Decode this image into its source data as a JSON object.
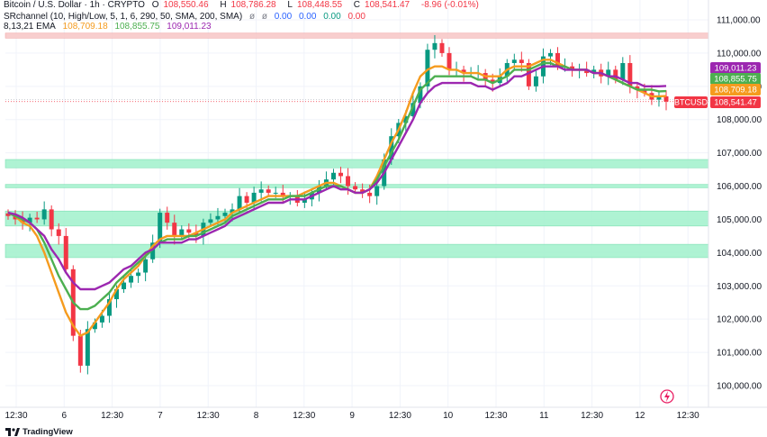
{
  "header": {
    "symbol_title": "Bitcoin / U.S. Dollar · 1h · CRYPTO",
    "ohlc": [
      {
        "label": "O",
        "value": "108,550.46"
      },
      {
        "label": "H",
        "value": "108,786.28"
      },
      {
        "label": "L",
        "value": "108,448.55"
      },
      {
        "label": "C",
        "value": "108,541.47"
      }
    ],
    "change": "-8.96 (-0.01%)",
    "indicator1": {
      "title": "SRchannel (10, High/Low, 5, 1, 6, 290, 50, SMA, 200, SMA)",
      "icons": [
        "eye-off-icon",
        "eye-off-icon"
      ],
      "values": [
        "0.00",
        "0.00",
        "0.00",
        "0.00"
      ]
    },
    "indicator2": {
      "title": "8,13,21 EMA",
      "values": [
        "108,709.18",
        "108,855.75",
        "109,011.23"
      ]
    }
  },
  "colors": {
    "up": "#089981",
    "down": "#f23645",
    "ema8": "#f59b1e",
    "ema13": "#4caf50",
    "ema21": "#9c27b0",
    "support_zone": "#a6f2cf",
    "resistance_zone": "#f8c9c9",
    "price_tag": "#f23645",
    "grid": "#f0f3fa",
    "axis_text": "#131722"
  },
  "footer": {
    "brand": "TradingView",
    "logo_icon": "tradingview-logo-icon",
    "bolt_icon": "lightning-icon"
  },
  "chart_data": {
    "type": "candlestick",
    "title": "Bitcoin / U.S. Dollar · 1h · CRYPTO",
    "y_axis_ticks": [
      "111,000.00",
      "110,000.00",
      "109,000.00",
      "108,000.00",
      "107,000.00",
      "106,000.00",
      "105,000.00",
      "104,000.00",
      "103,000.00",
      "102,000.00",
      "101,000.00",
      "100,000.00"
    ],
    "y_tick_values": [
      111000,
      110000,
      109000,
      108000,
      107000,
      106000,
      105000,
      104000,
      103000,
      102000,
      101000,
      100000
    ],
    "ylim": [
      99500,
      111500
    ],
    "x_axis_ticks": [
      "12:30",
      "6",
      "12:30",
      "7",
      "12:30",
      "8",
      "12:30",
      "9",
      "12:30",
      "10",
      "12:30",
      "11",
      "12:30",
      "12",
      "12:30"
    ],
    "x_tick_values": [
      "5 Jul 12:30",
      "6 Jul 00:00",
      "6 Jul 12:30",
      "7 Jul 00:00",
      "7 Jul 12:30",
      "8 Jul 00:00",
      "8 Jul 12:30",
      "9 Jul 00:00",
      "9 Jul 12:30",
      "10 Jul 00:00",
      "10 Jul 12:30",
      "11 Jul 00:00",
      "11 Jul 12:30",
      "12 Jul 00:00",
      "12 Jul 12:30"
    ],
    "zones": [
      {
        "kind": "resistance",
        "low": 110450,
        "high": 110600
      },
      {
        "kind": "support",
        "low": 106550,
        "high": 106800
      },
      {
        "kind": "support",
        "low": 105950,
        "high": 106050
      },
      {
        "kind": "support",
        "low": 104800,
        "high": 105250
      },
      {
        "kind": "support",
        "low": 103850,
        "high": 104250
      }
    ],
    "price_labels": [
      {
        "name": "ema21",
        "value": 109011.23,
        "text": "109,011.23"
      },
      {
        "name": "ema13",
        "value": 108855.75,
        "text": "108,855.75"
      },
      {
        "name": "ema8",
        "value": 108709.18,
        "text": "108,709.18"
      },
      {
        "name": "symbol",
        "value": 108600,
        "text": "BTCUSD"
      },
      {
        "name": "close",
        "value": 108541.47,
        "text": "108,541.47"
      }
    ],
    "close_series": [
      105100,
      105000,
      104900,
      105050,
      105000,
      105300,
      104700,
      104500,
      103500,
      101500,
      100600,
      101700,
      101900,
      102100,
      102600,
      102900,
      103100,
      103300,
      103400,
      103800,
      104300,
      105200,
      104900,
      104500,
      104700,
      104600,
      104500,
      104900,
      105000,
      105100,
      105200,
      105300,
      105700,
      105500,
      105800,
      105900,
      105800,
      105800,
      105700,
      105700,
      105500,
      105600,
      105800,
      106000,
      106200,
      106400,
      106300,
      106000,
      105900,
      105800,
      105700,
      106000,
      106800,
      107500,
      107900,
      108100,
      108500,
      109000,
      110100,
      110300,
      110000,
      109500,
      109500,
      109400,
      109400,
      109400,
      109200,
      109100,
      109300,
      109700,
      109800,
      109700,
      109000,
      109300,
      109900,
      110000,
      109600,
      109600,
      109500,
      109500,
      109400,
      109500,
      109300,
      109500,
      109200,
      109700,
      109000,
      108900,
      108800,
      108600,
      108700,
      108541
    ],
    "series": [
      {
        "name": "8",
        "values": [
          105200,
          105100,
          104900,
          104800,
          104500,
          104000,
          103400,
          102800,
          102200,
          101800,
          101500,
          101600,
          101900,
          102200,
          102500,
          102900,
          103200,
          103400,
          103600,
          103900,
          104200,
          104400,
          104500,
          104500,
          104500,
          104500,
          104600,
          104700,
          104800,
          104900,
          105000,
          105200,
          105300,
          105400,
          105500,
          105600,
          105700,
          105700,
          105700,
          105700,
          105700,
          105800,
          105900,
          106000,
          106100,
          106100,
          106000,
          105900,
          105800,
          105800,
          105900,
          106300,
          106800,
          107300,
          107700,
          108200,
          108800,
          109300,
          109500,
          109600,
          109600,
          109500,
          109500,
          109400,
          109400,
          109400,
          109300,
          109300,
          109300,
          109500,
          109600,
          109600,
          109600,
          109700,
          109800,
          109800,
          109700,
          109600,
          109500,
          109500,
          109500,
          109400,
          109400,
          109300,
          109200,
          109100,
          109000,
          108900,
          108800,
          108700,
          108700,
          108709
        ]
      },
      {
        "name": "13",
        "values": [
          105200,
          105100,
          105000,
          104900,
          104700,
          104300,
          103800,
          103300,
          102900,
          102500,
          102300,
          102300,
          102400,
          102600,
          102800,
          103100,
          103300,
          103500,
          103700,
          103900,
          104100,
          104300,
          104400,
          104400,
          104400,
          104500,
          104500,
          104600,
          104700,
          104800,
          104900,
          105100,
          105200,
          105300,
          105400,
          105500,
          105600,
          105600,
          105600,
          105700,
          105700,
          105700,
          105800,
          105900,
          106000,
          106000,
          106000,
          105900,
          105800,
          105800,
          105900,
          106200,
          106600,
          107000,
          107400,
          107900,
          108400,
          108900,
          109100,
          109300,
          109300,
          109300,
          109300,
          109300,
          109300,
          109200,
          109200,
          109100,
          109200,
          109300,
          109500,
          109500,
          109500,
          109600,
          109700,
          109700,
          109600,
          109600,
          109500,
          109500,
          109500,
          109400,
          109400,
          109300,
          109200,
          109100,
          109000,
          108900,
          108900,
          108900,
          108850,
          108856
        ]
      },
      {
        "name": "21",
        "values": [
          105200,
          105150,
          105050,
          104900,
          104700,
          104500,
          104100,
          103800,
          103400,
          103100,
          102900,
          102900,
          102900,
          103000,
          103100,
          103300,
          103500,
          103600,
          103800,
          104000,
          104100,
          104300,
          104300,
          104300,
          104300,
          104400,
          104400,
          104500,
          104600,
          104700,
          104800,
          105000,
          105100,
          105200,
          105300,
          105400,
          105500,
          105500,
          105500,
          105600,
          105600,
          105600,
          105700,
          105800,
          105900,
          106000,
          105900,
          105900,
          105800,
          105800,
          105900,
          106100,
          106400,
          106800,
          107200,
          107600,
          108000,
          108500,
          108800,
          109000,
          109100,
          109100,
          109100,
          109100,
          109100,
          109000,
          109000,
          108900,
          109000,
          109100,
          109300,
          109300,
          109400,
          109500,
          109600,
          109600,
          109600,
          109500,
          109500,
          109500,
          109500,
          109400,
          109400,
          109300,
          109300,
          109200,
          109100,
          109100,
          109000,
          109000,
          109000,
          109011
        ]
      }
    ]
  }
}
